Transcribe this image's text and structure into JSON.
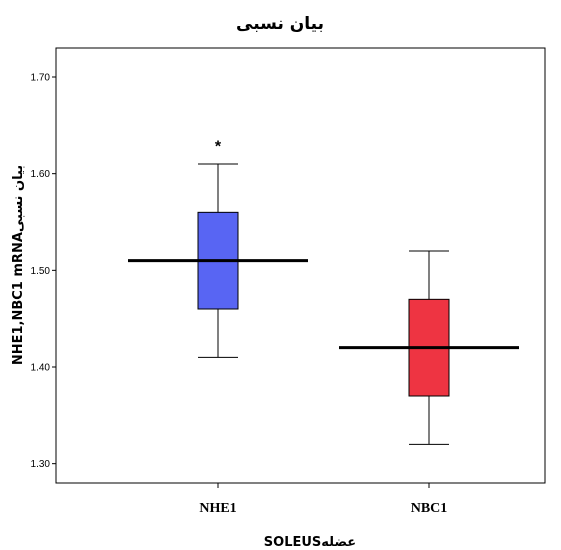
{
  "chart_data": {
    "type": "box",
    "title": "بیان نسبی",
    "xlabel": "SOLEUSعضله",
    "ylabel": "NHE1,NBC1 mRNAبیان نسبی",
    "ylim": [
      1.28,
      1.73
    ],
    "yticks": [
      1.3,
      1.4,
      1.5,
      1.6,
      1.7
    ],
    "ytick_labels": [
      "1.30",
      "1.40",
      "1.50",
      "1.60",
      "1.70"
    ],
    "grid": false,
    "categories": [
      "NHE1",
      "NBC1"
    ],
    "boxes": [
      {
        "category": "NHE1",
        "min": 1.41,
        "q1": 1.46,
        "median": 1.51,
        "q3": 1.56,
        "max": 1.61,
        "outlier_marker": "*",
        "outlier_value": 1.632,
        "color": "#5865f3"
      },
      {
        "category": "NBC1",
        "min": 1.32,
        "q1": 1.37,
        "median": 1.42,
        "q3": 1.47,
        "max": 1.52,
        "color": "#ee3442"
      }
    ]
  }
}
